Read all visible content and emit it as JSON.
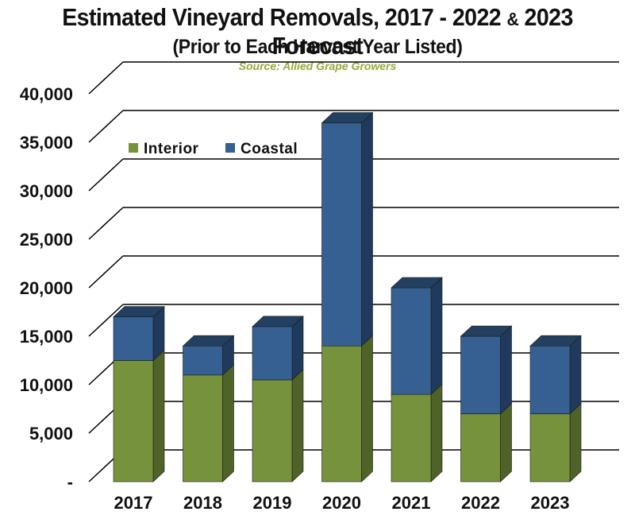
{
  "title_main": "Estimated Vineyard Removals, 2017 - 2022",
  "title_amp": "&",
  "title_tail": "2023 Forecast",
  "subtitle": "(Prior to Each Harvest Year Listed)",
  "source": "Source: Allied Grape Growers",
  "colors": {
    "interior_front": "#76923c",
    "interior_side": "#4f6228",
    "interior_top": "#5f7530",
    "coastal_front": "#366092",
    "coastal_side": "#1f3a5c",
    "coastal_top": "#244061",
    "grid": "#000000"
  },
  "chart_data": {
    "type": "bar",
    "stacked": true,
    "three_d": true,
    "title": "Estimated Vineyard Removals, 2017 - 2022 & 2023 Forecast",
    "subtitle": "(Prior to Each Harvest Year Listed)",
    "categories": [
      "2017",
      "2018",
      "2019",
      "2020",
      "2021",
      "2022",
      "2023"
    ],
    "series": [
      {
        "name": "Interior",
        "values": [
          12500,
          11000,
          10500,
          14000,
          9000,
          7000,
          7000
        ]
      },
      {
        "name": "Coastal",
        "values": [
          4500,
          3000,
          5500,
          23000,
          11000,
          8000,
          7000
        ]
      }
    ],
    "ylim": [
      0,
      40000
    ],
    "yticks": [
      0,
      5000,
      10000,
      15000,
      20000,
      25000,
      30000,
      35000,
      40000
    ],
    "ytick_labels": [
      "-",
      "5,000",
      "10,000",
      "15,000",
      "20,000",
      "25,000",
      "30,000",
      "35,000",
      "40,000"
    ],
    "grid": true,
    "legend_position": "upper-left"
  }
}
